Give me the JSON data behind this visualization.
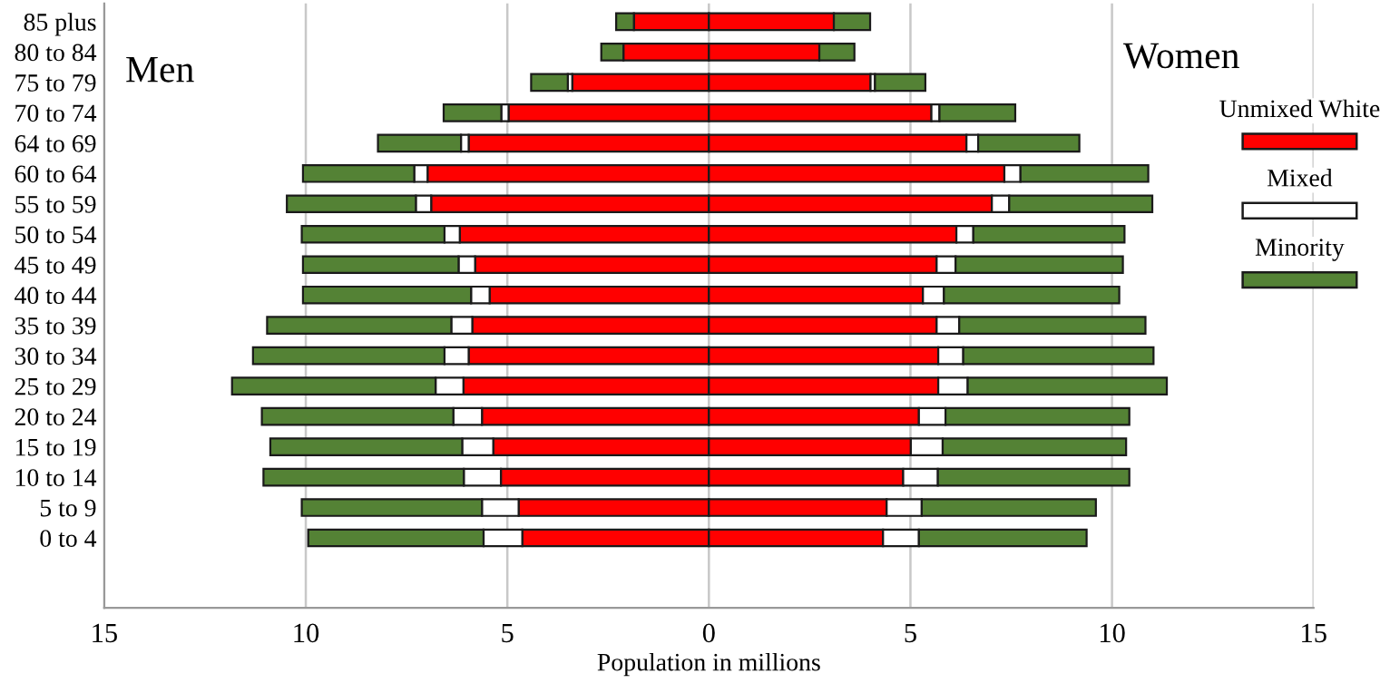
{
  "chart_data": {
    "type": "bar",
    "orientation": "horizontal",
    "stacked": true,
    "xlabel": "Population in millions",
    "categories": [
      "85 plus",
      "80 to 84",
      "75 to 79",
      "70 to 74",
      "64 to 69",
      "60 to 64",
      "55 to 59",
      "50 to 54",
      "45 to 49",
      "40 to 44",
      "35 to 39",
      "30 to 34",
      "25 to 29",
      "20 to 24",
      "15 to 19",
      "10 to 14",
      "5 to 9",
      "0 to 4"
    ],
    "series": [
      {
        "color": "#ff0000",
        "values": [
          -1.86,
          -2.12,
          -3.39,
          -4.97,
          -5.96,
          -6.98,
          -6.89,
          -6.18,
          -5.8,
          -5.44,
          -5.87,
          -5.96,
          -6.09,
          -5.63,
          -5.35,
          -5.16,
          -4.72,
          -4.63
        ]
      },
      {
        "color": "#ffffff",
        "values": [
          null,
          null,
          -0.11,
          -0.18,
          -0.19,
          -0.33,
          -0.38,
          -0.38,
          -0.41,
          -0.46,
          -0.52,
          -0.6,
          -0.69,
          -0.71,
          -0.77,
          -0.92,
          -0.91,
          -0.96
        ]
      },
      {
        "color": "#548235",
        "values": [
          -0.44,
          -0.55,
          -0.91,
          -1.43,
          -2.06,
          -2.76,
          -3.2,
          -3.54,
          -3.86,
          -4.17,
          -4.57,
          -4.75,
          -5.05,
          -4.75,
          -4.76,
          -4.97,
          -4.47,
          -4.35
        ]
      },
      {
        "name": "Unmixed White",
        "color": "#ff0000",
        "values": [
          3.1,
          2.74,
          4.01,
          5.52,
          6.39,
          7.33,
          7.02,
          6.14,
          5.65,
          5.31,
          5.65,
          5.69,
          5.69,
          5.21,
          5.01,
          4.82,
          4.41,
          4.32
        ]
      },
      {
        "name": "Mixed",
        "color": "#ffffff",
        "values": [
          null,
          null,
          0.11,
          0.2,
          0.29,
          0.4,
          0.43,
          0.42,
          0.47,
          0.52,
          0.56,
          0.62,
          0.73,
          0.66,
          0.79,
          0.86,
          0.87,
          0.89
        ]
      },
      {
        "name": "Minority",
        "color": "#548235",
        "values": [
          0.9,
          0.87,
          1.25,
          1.88,
          2.51,
          3.17,
          3.55,
          3.75,
          4.15,
          4.35,
          4.62,
          4.72,
          4.94,
          4.56,
          4.55,
          4.75,
          4.32,
          4.16
        ]
      }
    ],
    "xlim": [
      -15,
      15
    ],
    "xticks": [
      {
        "value": -15,
        "label": "15"
      },
      {
        "value": -10,
        "label": "10"
      },
      {
        "value": -5,
        "label": "5"
      },
      0,
      5,
      10,
      15
    ],
    "grid": "x",
    "legend": "right",
    "annotations": [
      "Men",
      "Women"
    ]
  }
}
